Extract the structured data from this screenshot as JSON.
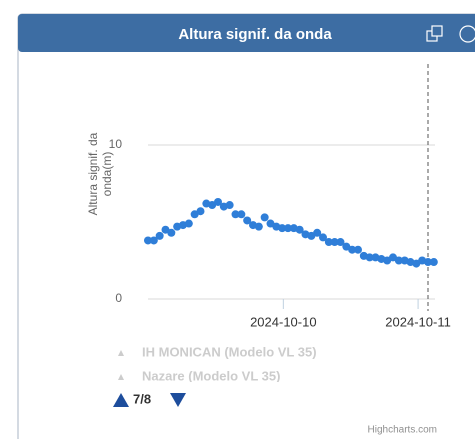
{
  "chart_data": {
    "type": "scatter",
    "title": "Altura signif. da onda",
    "y_label": "Altura signif. da onda(m)",
    "series": [
      {
        "color": "#2f7ed8",
        "values": [
          3.8,
          3.8,
          4.1,
          4.5,
          4.3,
          4.7,
          4.8,
          4.9,
          5.5,
          5.7,
          6.2,
          6.1,
          6.3,
          6.0,
          6.1,
          5.5,
          5.5,
          5.1,
          4.8,
          4.7,
          5.3,
          4.9,
          4.7,
          4.6,
          4.6,
          4.6,
          4.5,
          4.2,
          4.1,
          4.3,
          4.0,
          3.7,
          3.7,
          3.7,
          3.4,
          3.2,
          3.2,
          2.8,
          2.7,
          2.7,
          2.6,
          2.5,
          2.7,
          2.5,
          2.5,
          2.4,
          2.3,
          2.5,
          2.4,
          2.4
        ]
      }
    ],
    "xlim": [
      0,
      49.2
    ],
    "xticks": [
      {
        "value": 23.2,
        "label": "2024-10-10"
      },
      {
        "value": 46.3,
        "label": "2024-10-11"
      }
    ],
    "plot_line_x": 48.0,
    "ylim": [
      0,
      15
    ],
    "yticks": [
      0,
      10
    ],
    "grid": true,
    "legend_items": [
      "IH MONICAN (Modelo VL 35)",
      "Nazare (Modelo VL 35)"
    ],
    "legend_page": "7/8",
    "credits": "Highcharts.com"
  }
}
